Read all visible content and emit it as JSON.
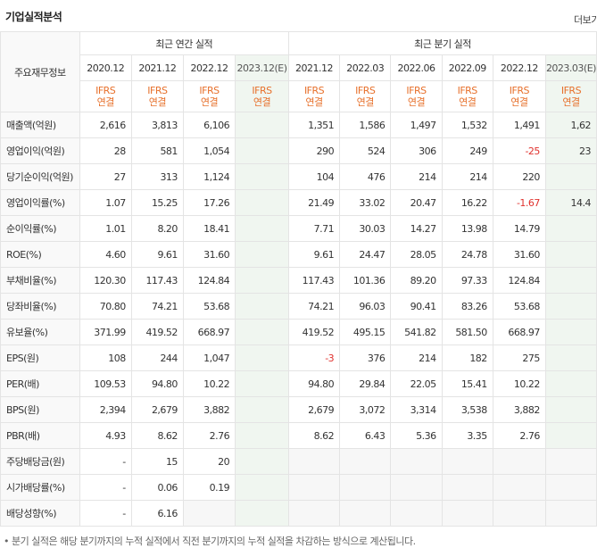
{
  "header": {
    "title": "기업실적분석",
    "more_label": "더보기"
  },
  "table": {
    "corner_label": "주요재무정보",
    "groups": {
      "annual": "최근 연간 실적",
      "quarterly": "최근 분기 실적"
    },
    "periods": [
      "2020.12",
      "2021.12",
      "2022.12",
      "2023.12(E)",
      "2021.12",
      "2022.03",
      "2022.06",
      "2022.09",
      "2022.12",
      "2023.03(E)"
    ],
    "ifrs_top": "IFRS",
    "ifrs_bottom": "연결",
    "rows": [
      {
        "label": "매출액(억원)",
        "values": [
          "2,616",
          "3,813",
          "6,106",
          "",
          "1,351",
          "1,586",
          "1,497",
          "1,532",
          "1,491",
          "1,62"
        ]
      },
      {
        "label": "영업이익(억원)",
        "values": [
          "28",
          "581",
          "1,054",
          "",
          "290",
          "524",
          "306",
          "249",
          "-25",
          "23"
        ]
      },
      {
        "label": "당기순이익(억원)",
        "values": [
          "27",
          "313",
          "1,124",
          "",
          "104",
          "476",
          "214",
          "214",
          "220",
          ""
        ]
      },
      {
        "label": "영업이익률(%)",
        "values": [
          "1.07",
          "15.25",
          "17.26",
          "",
          "21.49",
          "33.02",
          "20.47",
          "16.22",
          "-1.67",
          "14.4"
        ]
      },
      {
        "label": "순이익률(%)",
        "values": [
          "1.01",
          "8.20",
          "18.41",
          "",
          "7.71",
          "30.03",
          "14.27",
          "13.98",
          "14.79",
          ""
        ]
      },
      {
        "label": "ROE(%)",
        "values": [
          "4.60",
          "9.61",
          "31.60",
          "",
          "9.61",
          "24.47",
          "28.05",
          "24.78",
          "31.60",
          ""
        ]
      },
      {
        "label": "부채비율(%)",
        "values": [
          "120.30",
          "117.43",
          "124.84",
          "",
          "117.43",
          "101.36",
          "89.20",
          "97.33",
          "124.84",
          ""
        ]
      },
      {
        "label": "당좌비율(%)",
        "values": [
          "70.80",
          "74.21",
          "53.68",
          "",
          "74.21",
          "96.03",
          "90.41",
          "83.26",
          "53.68",
          ""
        ]
      },
      {
        "label": "유보율(%)",
        "values": [
          "371.99",
          "419.52",
          "668.97",
          "",
          "419.52",
          "495.15",
          "541.82",
          "581.50",
          "668.97",
          ""
        ]
      },
      {
        "label": "EPS(원)",
        "values": [
          "108",
          "244",
          "1,047",
          "",
          "-3",
          "376",
          "214",
          "182",
          "275",
          ""
        ]
      },
      {
        "label": "PER(배)",
        "values": [
          "109.53",
          "94.80",
          "10.22",
          "",
          "94.80",
          "29.84",
          "22.05",
          "15.41",
          "10.22",
          ""
        ]
      },
      {
        "label": "BPS(원)",
        "values": [
          "2,394",
          "2,679",
          "3,882",
          "",
          "2,679",
          "3,072",
          "3,314",
          "3,538",
          "3,882",
          ""
        ]
      },
      {
        "label": "PBR(배)",
        "values": [
          "4.93",
          "8.62",
          "2.76",
          "",
          "8.62",
          "6.43",
          "5.36",
          "3.35",
          "2.76",
          ""
        ]
      },
      {
        "label": "주당배당금(원)",
        "values": [
          "-",
          "15",
          "20",
          "",
          "",
          "",
          "",
          "",
          "",
          ""
        ]
      },
      {
        "label": "시가배당률(%)",
        "values": [
          "-",
          "0.06",
          "0.19",
          "",
          "",
          "",
          "",
          "",
          "",
          ""
        ]
      },
      {
        "label": "배당성향(%)",
        "values": [
          "-",
          "6.16",
          "",
          "",
          "",
          "",
          "",
          "",
          "",
          ""
        ]
      }
    ]
  },
  "footnote": "• 분기 실적은 해당 분기까지의 누적 실적에서 직전 분기까지의 누적 실적을 차감하는 방식으로 계산됩니다."
}
